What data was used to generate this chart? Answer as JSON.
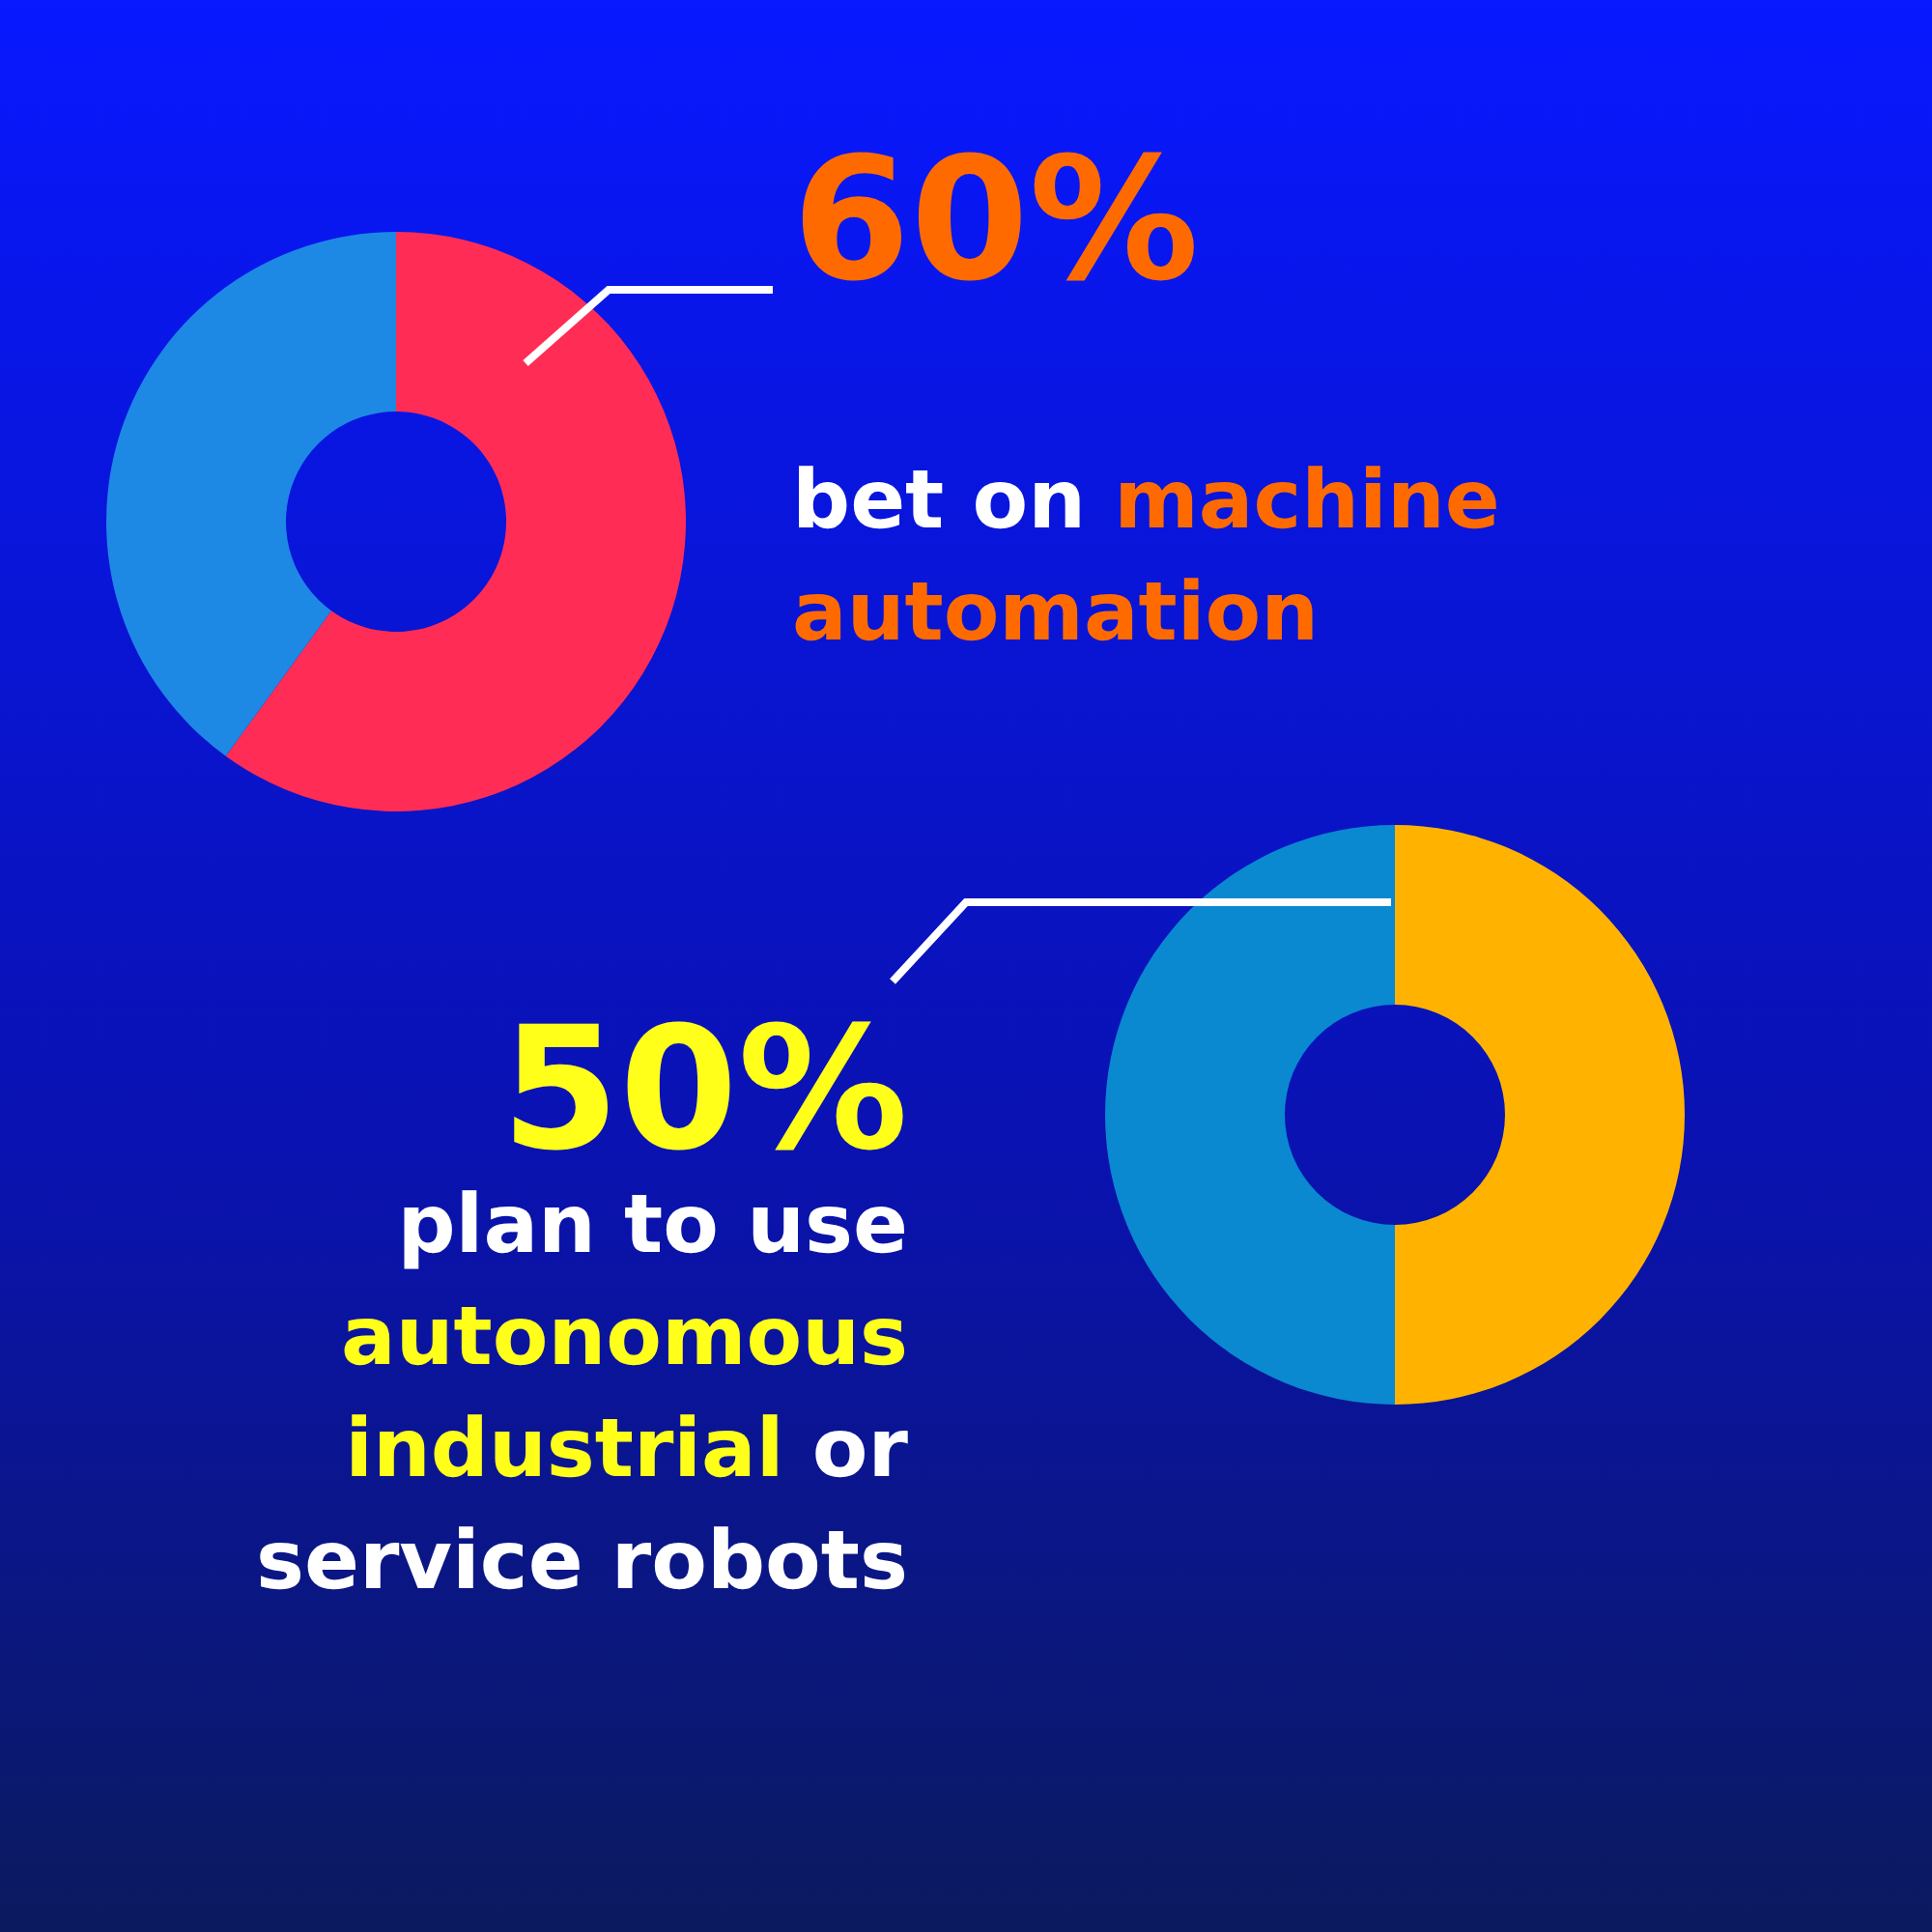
{
  "chart_data": [
    {
      "type": "donut",
      "categories": [
        null,
        null
      ],
      "values": [
        60,
        40
      ],
      "colors": [
        "#ff2d55",
        "#1e88e5"
      ],
      "value_labels": [
        "60%",
        null
      ],
      "annotations": [
        "bet on ",
        "machine automation"
      ]
    },
    {
      "type": "donut",
      "categories": [
        null,
        null
      ],
      "values": [
        50,
        50
      ],
      "colors": [
        "#ffb300",
        "#0a88d0"
      ],
      "value_labels": [
        "50%",
        null
      ],
      "annotations": [
        "plan to use ",
        "autonomous industrial",
        " or service robots"
      ]
    }
  ]
}
